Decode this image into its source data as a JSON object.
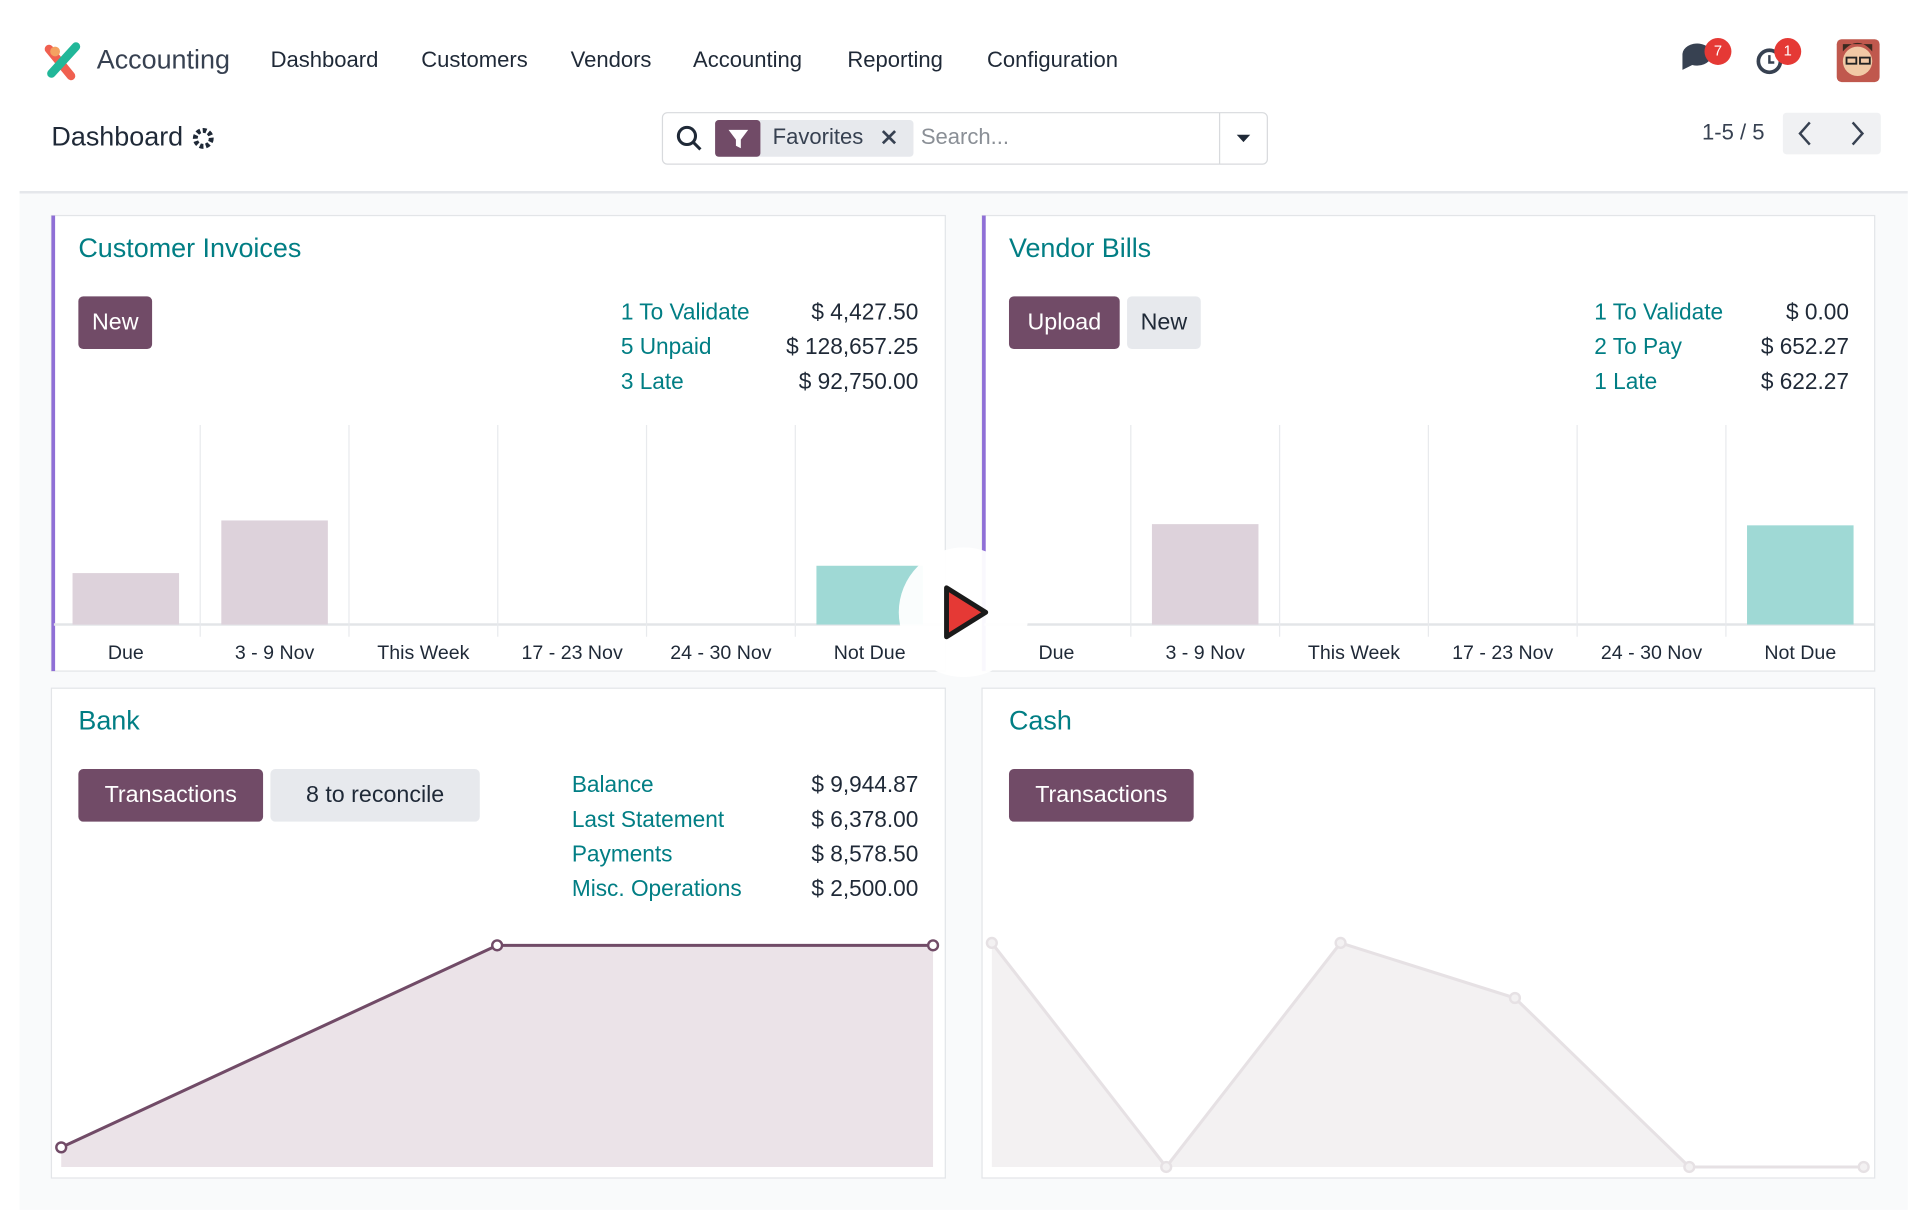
{
  "nav": {
    "app": "Accounting",
    "menu": [
      "Dashboard",
      "Customers",
      "Vendors",
      "Accounting",
      "Reporting",
      "Configuration"
    ],
    "messages_badge": 7,
    "activities_badge": 1
  },
  "control": {
    "breadcrumb": "Dashboard",
    "filter": "Favorites",
    "search_placeholder": "Search...",
    "pager": "1-5 / 5"
  },
  "journals": [
    {
      "title": "Customer Invoices",
      "buttons": [
        "New"
      ],
      "stats": [
        {
          "label": "1 To Validate",
          "amount": "$ 4,427.50"
        },
        {
          "label": "5 Unpaid",
          "amount": "$ 128,657.25"
        },
        {
          "label": "3 Late",
          "amount": "$ 92,750.00"
        }
      ],
      "graph": {
        "type": "bar",
        "categories": [
          "Due",
          "3 - 9 Nov",
          "This Week",
          "17 - 23 Nov",
          "24 - 30 Nov",
          "Not Due"
        ],
        "values": [
          42,
          85,
          0,
          0,
          0,
          48
        ],
        "ylim": [
          0,
          170
        ]
      }
    },
    {
      "title": "Vendor Bills",
      "buttons": [
        "Upload",
        "New"
      ],
      "stats": [
        {
          "label": "1 To Validate",
          "amount": "$ 0.00"
        },
        {
          "label": "2 To Pay",
          "amount": "$ 652.27"
        },
        {
          "label": "1 Late",
          "amount": "$ 622.27"
        }
      ],
      "graph": {
        "type": "bar",
        "categories": [
          "Due",
          "3 - 9 Nov",
          "This Week",
          "17 - 23 Nov",
          "24 - 30 Nov",
          "Not Due"
        ],
        "values": [
          0,
          82,
          0,
          0,
          0,
          81
        ],
        "ylim": [
          0,
          170
        ]
      }
    },
    {
      "title": "Bank",
      "buttons": [
        "Transactions",
        "8 to reconcile"
      ],
      "stats": [
        {
          "label": "Balance",
          "amount": "$ 9,944.87"
        },
        {
          "label": "Last Statement",
          "amount": "$ 6,378.00"
        },
        {
          "label": "Payments",
          "amount": "$ 8,578.50"
        },
        {
          "label": "Misc. Operations",
          "amount": "$ 2,500.00"
        }
      ],
      "graph": {
        "type": "line",
        "values": [
          16,
          181,
          181
        ],
        "ylim": [
          0,
          183
        ]
      }
    },
    {
      "title": "Cash",
      "buttons": [
        "Transactions"
      ],
      "stats": [],
      "graph": {
        "type": "line",
        "values": [
          183,
          0,
          183,
          138,
          0,
          0
        ],
        "ylim": [
          0,
          183
        ]
      }
    }
  ]
}
